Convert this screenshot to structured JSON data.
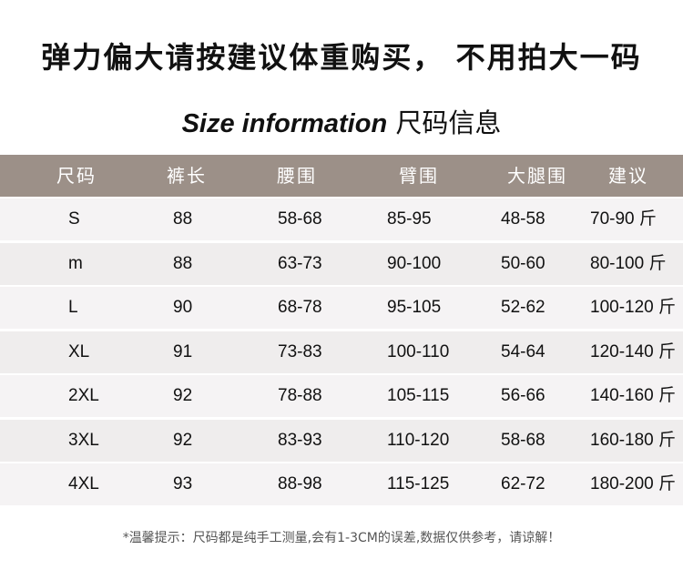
{
  "title": "弹力偏大请按建议体重购买， 不用拍大一码",
  "subtitle": {
    "en": "Size information",
    "zh": "尺码信息"
  },
  "table": {
    "headers": [
      "尺码",
      "裤长",
      "腰围",
      "臂围",
      "大腿围",
      "建议"
    ],
    "rows": [
      [
        "S",
        "88",
        "58-68",
        "85-95",
        "48-58",
        "70-90 斤"
      ],
      [
        "m",
        "88",
        "63-73",
        "90-100",
        "50-60",
        "80-100 斤"
      ],
      [
        "L",
        "90",
        "68-78",
        "95-105",
        "52-62",
        "100-120 斤"
      ],
      [
        "XL",
        "91",
        "73-83",
        "100-110",
        "54-64",
        "120-140 斤"
      ],
      [
        "2XL",
        "92",
        "78-88",
        "105-115",
        "56-66",
        "140-160 斤"
      ],
      [
        "3XL",
        "92",
        "83-93",
        "110-120",
        "58-68",
        "160-180 斤"
      ],
      [
        "4XL",
        "93",
        "88-98",
        "115-125",
        "62-72",
        "180-200 斤"
      ]
    ]
  },
  "note": "*温馨提示：尺码都是纯手工测量,会有1-3CM的误差,数据仅供参考，请谅解！",
  "colors": {
    "header_bg": "#9c9088",
    "row_light": "#f5f3f4",
    "row_alt": "#efeded"
  }
}
